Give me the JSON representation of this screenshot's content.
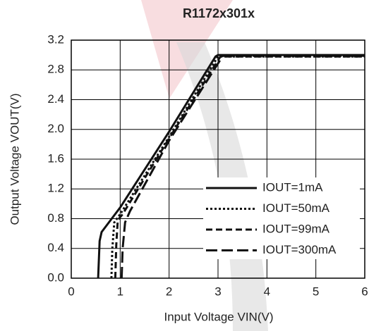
{
  "chart_data": {
    "type": "line",
    "title": "R1172x301x",
    "x_label": "Input Voltage VIN(V)",
    "y_label": "Output Voltage VOUT(V)",
    "xlim": [
      0,
      6
    ],
    "ylim": [
      0,
      3.2
    ],
    "xticks": [
      0,
      1,
      2,
      3,
      4,
      5,
      6
    ],
    "yticks": [
      {
        "value": 0,
        "label": "0.0"
      },
      0.4,
      0.8,
      1.2,
      1.6,
      {
        "value": 2,
        "label": "2.0"
      },
      2.4,
      2.8,
      3.2
    ],
    "grid": true,
    "series": [
      {
        "name": "IOUT=1mA",
        "color": "#111111",
        "style": "solid",
        "x": [
          0.55,
          0.58,
          0.62,
          1.0,
          2.0,
          2.95,
          3.0,
          6.0
        ],
        "values": [
          0,
          0.5,
          0.62,
          0.95,
          1.97,
          2.98,
          3.0,
          3.0
        ]
      },
      {
        "name": "IOUT=50mA",
        "color": "#111111",
        "style": "dotted",
        "x": [
          0.82,
          0.84,
          0.88,
          1.0,
          2.0,
          3.0,
          6.0
        ],
        "values": [
          0,
          0.4,
          0.75,
          0.86,
          1.9,
          2.98,
          2.98
        ]
      },
      {
        "name": "IOUT=99mA",
        "color": "#111111",
        "style": "dashed",
        "x": [
          0.9,
          0.92,
          0.95,
          1.05,
          2.0,
          3.05,
          6.0
        ],
        "values": [
          0,
          0.45,
          0.78,
          0.86,
          1.88,
          2.98,
          2.98
        ]
      },
      {
        "name": "IOUT=300mA",
        "color": "#111111",
        "style": "longdash",
        "x": [
          1.03,
          1.05,
          1.1,
          1.2,
          2.0,
          3.1,
          6.0
        ],
        "values": [
          0,
          0.4,
          0.75,
          0.9,
          1.85,
          2.99,
          2.99
        ]
      }
    ]
  }
}
